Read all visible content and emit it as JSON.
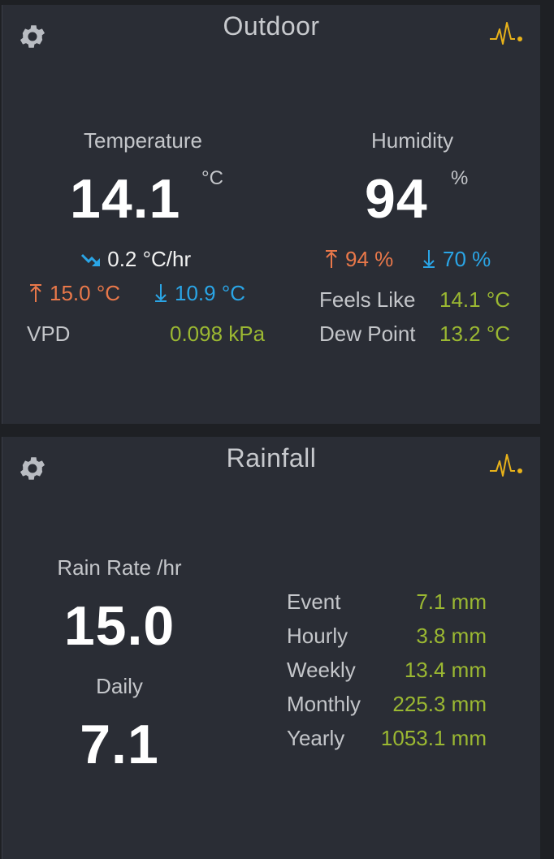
{
  "outdoor": {
    "title": "Outdoor",
    "temperature": {
      "label": "Temperature",
      "value": "14.1",
      "unit": "°C",
      "trend_icon": "trend-down-icon",
      "trend": "0.2 °C/hr",
      "high": "15.0 °C",
      "low": "10.9 °C"
    },
    "humidity": {
      "label": "Humidity",
      "value": "94",
      "unit": "%",
      "high": "94 %",
      "low": "70 %"
    },
    "vpd": {
      "label": "VPD",
      "value": "0.098 kPa"
    },
    "feels_like": {
      "label": "Feels Like",
      "value": "14.1 °C"
    },
    "dew_point": {
      "label": "Dew Point",
      "value": "13.2 °C"
    }
  },
  "rainfall": {
    "title": "Rainfall",
    "rate": {
      "label": "Rain Rate /hr",
      "value": "15.0"
    },
    "daily": {
      "label": "Daily",
      "value": "7.1"
    },
    "stats": [
      {
        "label": "Event",
        "value": "7.1 mm"
      },
      {
        "label": "Hourly",
        "value": "3.8 mm"
      },
      {
        "label": "Weekly",
        "value": "13.4 mm"
      },
      {
        "label": "Monthly",
        "value": "225.3 mm"
      },
      {
        "label": "Yearly",
        "value": "1053.1 mm"
      }
    ]
  },
  "colors": {
    "high": "#e9784a",
    "low": "#2aa5e6",
    "value": "#9bb832",
    "pulse": "#e8b21a"
  },
  "icons": [
    "gear-icon",
    "pulse-icon",
    "high-arrow-icon",
    "low-arrow-icon",
    "trend-down-icon"
  ]
}
